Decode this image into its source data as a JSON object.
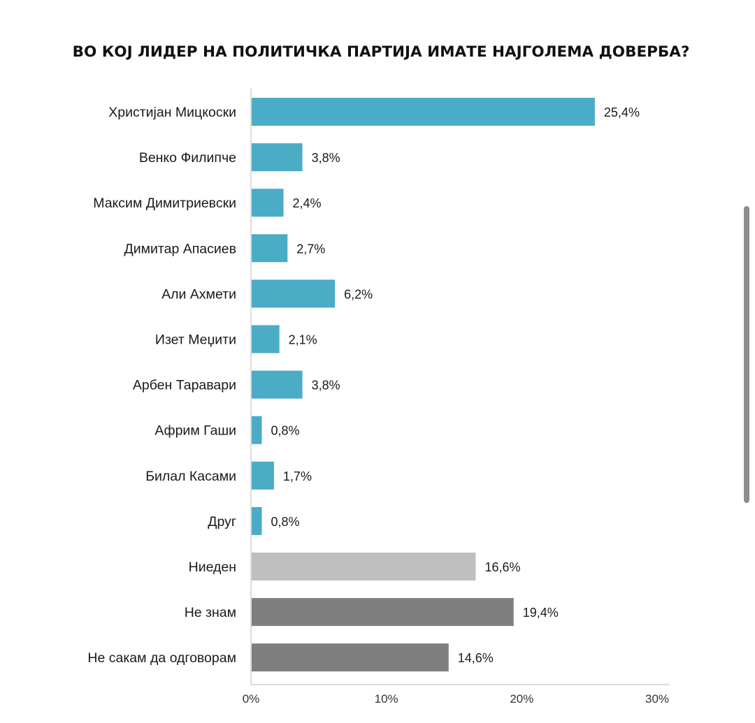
{
  "chart_data": {
    "type": "bar",
    "orientation": "horizontal",
    "title": "ВО КОЈ ЛИДЕР НА ПОЛИТИЧКА ПАРТИЈА ИМАТЕ НАЈГОЛЕМА ДОВЕРБА?",
    "categories": [
      "Христијан Мицкоски",
      "Венко Филипче",
      "Максим Димитриевски",
      "Димитар Апасиев",
      "Али Ахмети",
      "Изет Меџити",
      "Арбен Таравари",
      "Африм Гаши",
      "Билал Касами",
      "Друг",
      "Ниеден",
      "Не знам",
      "Не сакам да одговорам"
    ],
    "values": [
      25.4,
      3.8,
      2.4,
      2.7,
      6.2,
      2.1,
      3.8,
      0.8,
      1.7,
      0.8,
      16.6,
      19.4,
      14.6
    ],
    "value_labels": [
      "25,4%",
      "3,8%",
      "2,4%",
      "2,7%",
      "6,2%",
      "2,1%",
      "3,8%",
      "0,8%",
      "1,7%",
      "0,8%",
      "16,6%",
      "19,4%",
      "14,6%"
    ],
    "bar_colors": [
      "#4bacc6",
      "#4bacc6",
      "#4bacc6",
      "#4bacc6",
      "#4bacc6",
      "#4bacc6",
      "#4bacc6",
      "#4bacc6",
      "#4bacc6",
      "#4bacc6",
      "#bfbfbf",
      "#7f7f7f",
      "#7f7f7f"
    ],
    "xlim": [
      0,
      30
    ],
    "x_ticks": [
      0,
      10,
      20,
      30
    ],
    "x_tick_labels": [
      "0%",
      "10%",
      "20%",
      "30%"
    ],
    "grid": false,
    "legend": "none"
  }
}
